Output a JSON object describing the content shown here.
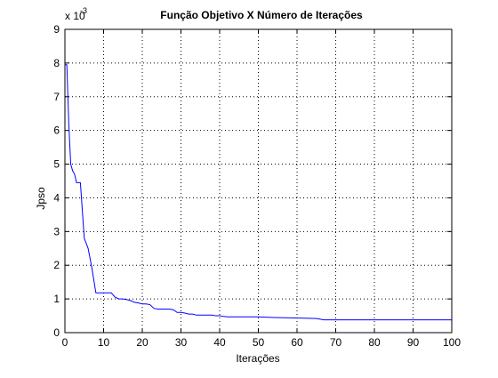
{
  "chart_data": {
    "type": "line",
    "title": "Função Objetivo X Número de Iterações",
    "xlabel": "Iterações",
    "ylabel": "Jpso",
    "y_multiplier_base": "x 10",
    "y_multiplier_exponent": "-3",
    "xlim": [
      0,
      100
    ],
    "ylim": [
      0,
      9
    ],
    "x_ticks": [
      0,
      10,
      20,
      30,
      40,
      50,
      60,
      70,
      80,
      90,
      100
    ],
    "y_ticks": [
      0,
      1,
      2,
      3,
      4,
      5,
      6,
      7,
      8,
      9
    ],
    "x_tick_labels": [
      "0",
      "10",
      "20",
      "30",
      "40",
      "50",
      "60",
      "70",
      "80",
      "90",
      "100"
    ],
    "y_tick_labels": [
      "0",
      "1",
      "2",
      "3",
      "4",
      "5",
      "6",
      "7",
      "8",
      "9"
    ],
    "grid": true,
    "series_color": "#0000ff",
    "series": [
      {
        "x": [
          0,
          0.5,
          1,
          1.5,
          2,
          2.5,
          3,
          4,
          5,
          6,
          7,
          8,
          9,
          10,
          11,
          12,
          13,
          14,
          15,
          16,
          17,
          18,
          19,
          20,
          21,
          22,
          23,
          24,
          25,
          26,
          27,
          28,
          29,
          30,
          31,
          32,
          33,
          34,
          35,
          36,
          37,
          38,
          39,
          40,
          41,
          42,
          45,
          50,
          54,
          58,
          62,
          65,
          66,
          67,
          70,
          75,
          80,
          85,
          90,
          95,
          100
        ],
        "values": [
          7.95,
          7.95,
          6.2,
          5.0,
          4.8,
          4.7,
          4.45,
          4.45,
          2.8,
          2.5,
          1.9,
          1.18,
          1.18,
          1.18,
          1.18,
          1.18,
          1.05,
          1.0,
          1.0,
          0.98,
          0.95,
          0.9,
          0.88,
          0.85,
          0.85,
          0.83,
          0.72,
          0.7,
          0.7,
          0.7,
          0.7,
          0.68,
          0.6,
          0.6,
          0.58,
          0.55,
          0.55,
          0.52,
          0.52,
          0.52,
          0.52,
          0.52,
          0.5,
          0.5,
          0.48,
          0.47,
          0.47,
          0.47,
          0.45,
          0.44,
          0.43,
          0.42,
          0.4,
          0.38,
          0.38,
          0.38,
          0.38,
          0.38,
          0.38,
          0.38,
          0.38
        ]
      }
    ]
  }
}
